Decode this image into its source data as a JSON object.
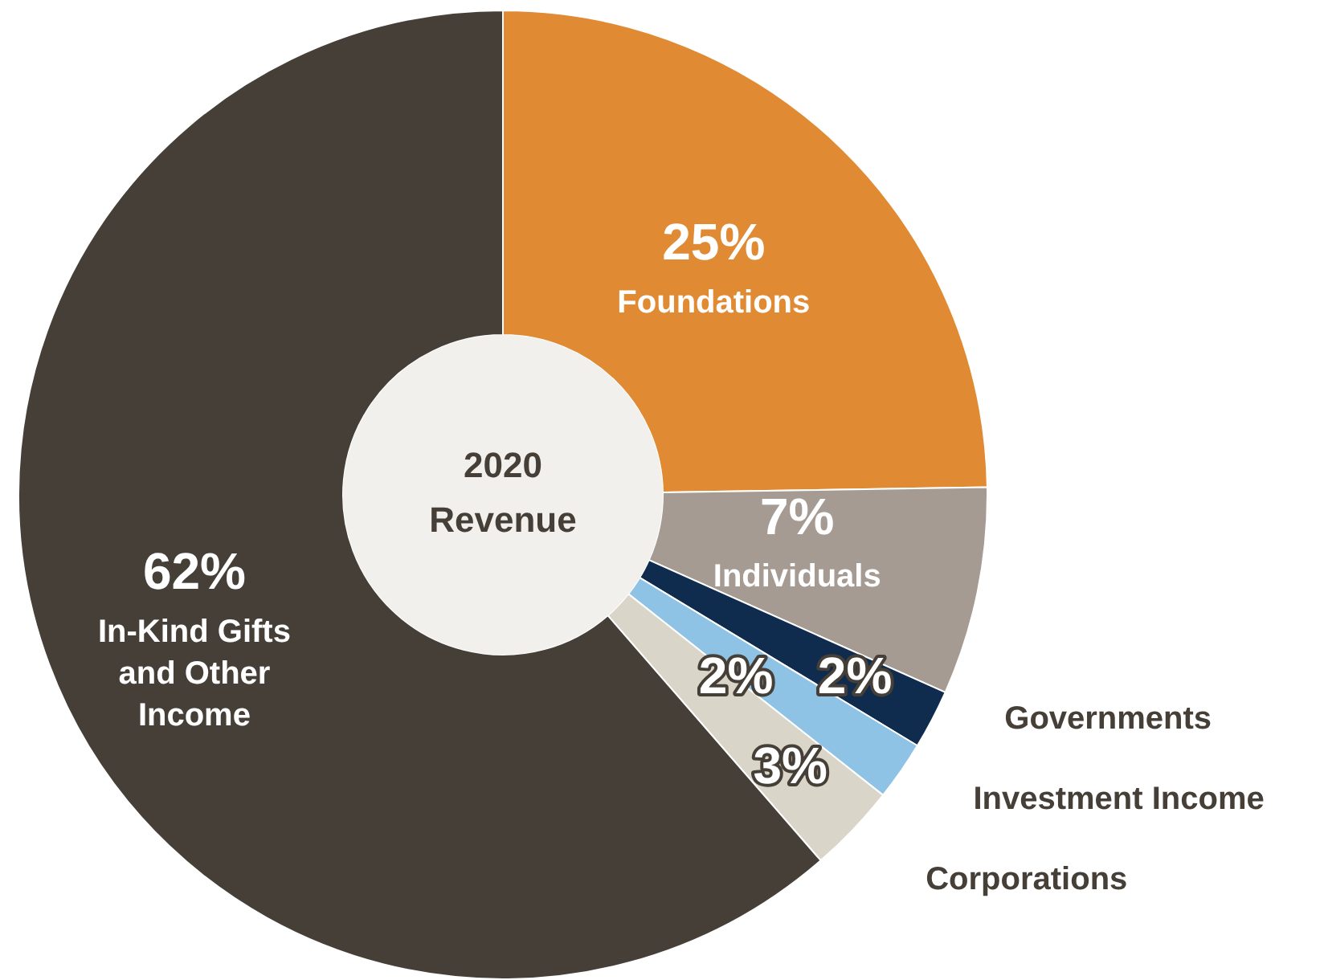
{
  "chart_data": {
    "type": "donut",
    "title": "2020 Revenue",
    "categories": [
      "Foundations",
      "Individuals",
      "Governments",
      "Investment Income",
      "Corporations",
      "In-Kind Gifts and Other Income"
    ],
    "values": [
      25,
      7,
      2,
      2,
      3,
      62
    ],
    "colors": [
      "#e08a33",
      "#a59b93",
      "#0f2b4d",
      "#8ec3e6",
      "#d9d5c8",
      "#463f38"
    ],
    "value_labels": [
      "25%",
      "7%",
      "2%",
      "2%",
      "3%",
      "62%"
    ],
    "legend": false
  }
}
